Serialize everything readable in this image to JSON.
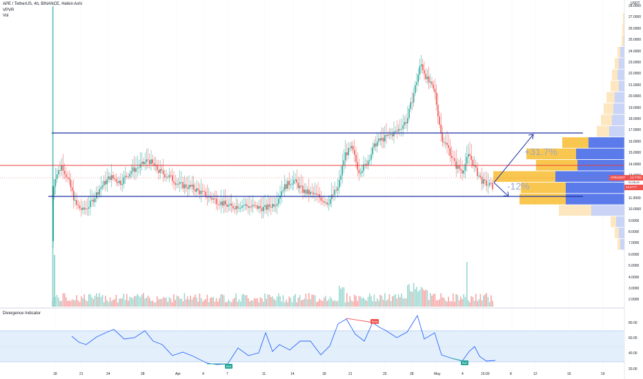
{
  "header": {
    "symbol": "APE / TetherUS, 4h, BINANCE, Heikin Ashi",
    "indicator1": "VPVR",
    "indicator2": "Vol",
    "currency": "USDT"
  },
  "oscillator": {
    "title": "Divergence Indicator"
  },
  "y_axis": {
    "labels": [
      "28.0000",
      "27.0000",
      "26.0000",
      "25.0000",
      "24.0000",
      "23.0000",
      "22.0000",
      "21.0000",
      "20.0000",
      "19.0000",
      "18.0000",
      "17.0000",
      "16.0000",
      "15.0000",
      "14.0000",
      "13.0000",
      "12.0000",
      "11.0000",
      "10.0000",
      "9.0000",
      "8.0000",
      "7.0000",
      "6.0000",
      "5.0000",
      "4.0000",
      "3.0000",
      "2.0000"
    ]
  },
  "osc_axis": {
    "labels": [
      "80.00",
      "60.00",
      "40.00",
      "20.00"
    ]
  },
  "x_axis": {
    "labels": [
      "18",
      "21",
      "24",
      "28",
      "Apr",
      "4",
      "7",
      "11",
      "14",
      "18",
      "21",
      "25",
      "28",
      "May",
      "4",
      "15:00",
      "8",
      "12",
      "16",
      "19"
    ]
  },
  "price_tags": {
    "symbol_tag": "APEUSDT",
    "price": "12.7793",
    "countdown": "01:05:43",
    "second_price": "12.6777"
  },
  "annotations": {
    "up": "+31.7%",
    "down": "-12%"
  },
  "badges": {
    "bull": "Bull",
    "bear": "Bear"
  },
  "colors": {
    "up": "#26a69a",
    "down": "#ef5350",
    "line_blue": "#1a2fa3",
    "line_red": "#e53935",
    "vp_yellow": "#f9c74f",
    "vp_blue": "#5b7bea",
    "osc_line": "#2962ff",
    "osc_band": "#e3f0fb"
  }
}
